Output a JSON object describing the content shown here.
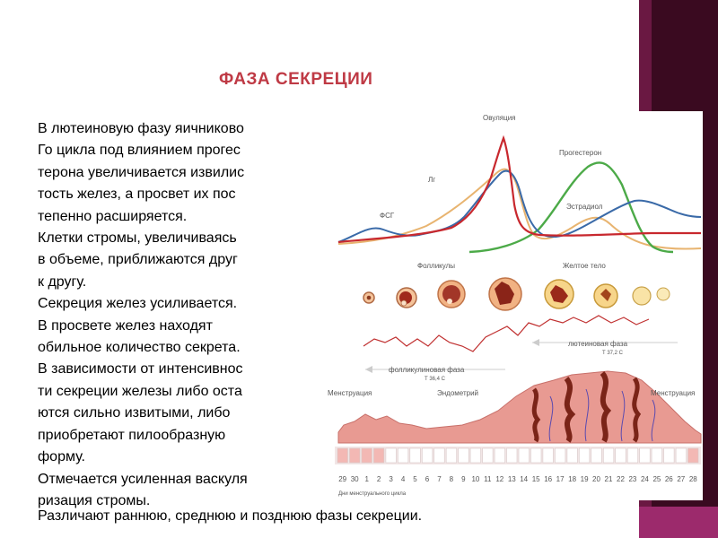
{
  "slide": {
    "title": "ФАЗА СЕКРЕЦИИ",
    "paragraph_lines": [
      "В лютеиновую фазу яичниково",
      "Го цикла под влиянием прогес",
      "терона увеличивается извилис",
      "тость желез, а просвет их пос",
      "тепенно расширяется.",
      "Клетки стромы, увеличиваясь",
      "в объеме, приближаются друг",
      "к другу.",
      "Секреция желез усиливается.",
      "В просвете желез находят",
      "обильное количество секрета.",
      "В зависимости от интенсивнос",
      "ти секреции железы либо оста",
      "ются сильно извитыми, либо",
      "приобретают пилообразную",
      "форму.",
      "Отмечается усиленная васкуля",
      "ризация стромы."
    ],
    "last_line": "Различают раннюю, среднюю и позднюю фазы секреции."
  },
  "figure": {
    "labels": {
      "ovulation": "Овуляция",
      "lh": "Лг",
      "progesterone": "Прогестерон",
      "fsh": "ФСГ",
      "estradiol": "Эстрадиол",
      "follicles": "Фолликулы",
      "corpus_luteum": "Желтое тело",
      "luteal_phase": "лютеиновая фаза",
      "luteal_temp": "Т 37,2 С",
      "follicular_phase": "фолликулиновая фаза",
      "follicular_temp": "Т 36,4 С",
      "menstruation_left": "Менструация",
      "endometrium": "Эндометрий",
      "menstruation_right": "Менструация",
      "cycle_days": "Дни менструального цикла"
    },
    "days": [
      "29",
      "30",
      "1",
      "2",
      "3",
      "4",
      "5",
      "6",
      "7",
      "8",
      "9",
      "10",
      "11",
      "12",
      "13",
      "14",
      "15",
      "16",
      "17",
      "18",
      "19",
      "20",
      "21",
      "22",
      "23",
      "24",
      "25",
      "26",
      "27",
      "28"
    ],
    "colors": {
      "lh": "#c8282e",
      "fsh": "#3a6aa8",
      "progesterone": "#4caa48",
      "estradiol": "#e8b470",
      "tissue": "#e89a92",
      "gland": "#7a2418"
    }
  }
}
